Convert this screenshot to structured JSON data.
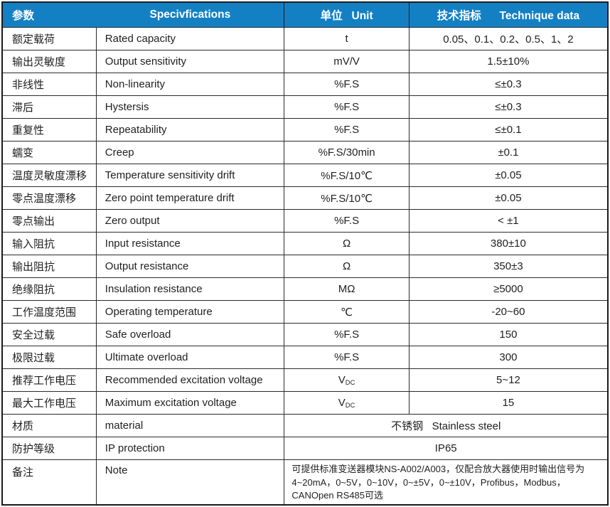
{
  "table": {
    "header": {
      "param": "参数",
      "spec": "Specivfications",
      "unit": "单位   Unit",
      "data": "技术指标      Technique data"
    },
    "rows": [
      {
        "param": "额定载荷",
        "spec": "Rated capacity",
        "unit": "t",
        "value": "0.05、0.1、0.2、0.5、1、2"
      },
      {
        "param": "输出灵敏度",
        "spec": "Output sensitivity",
        "unit": "mV/V",
        "value": "1.5±10%"
      },
      {
        "param": "非线性",
        "spec": "Non-linearity",
        "unit": "%F.S",
        "value": "≤±0.3"
      },
      {
        "param": "滞后",
        "spec": "Hystersis",
        "unit": "%F.S",
        "value": "≤±0.3"
      },
      {
        "param": "重复性",
        "spec": "Repeatability",
        "unit": "%F.S",
        "value": "≤±0.1"
      },
      {
        "param": "蠕变",
        "spec": "Creep",
        "unit": "%F.S/30min",
        "value": "±0.1"
      },
      {
        "param": "温度灵敏度漂移",
        "spec": "Temperature sensitivity drift",
        "unit": "%F.S/10℃",
        "value": "±0.05"
      },
      {
        "param": "零点温度漂移",
        "spec": "Zero point temperature drift",
        "unit": "%F.S/10℃",
        "value": "±0.05"
      },
      {
        "param": "零点输出",
        "spec": "Zero output",
        "unit": "%F.S",
        "value": "< ±1"
      },
      {
        "param": "输入阻抗",
        "spec": "Input resistance",
        "unit": "Ω",
        "value": "380±10"
      },
      {
        "param": "输出阻抗",
        "spec": "Output resistance",
        "unit": "Ω",
        "value": "350±3"
      },
      {
        "param": "绝缘阻抗",
        "spec": "Insulation resistance",
        "unit": "MΩ",
        "value": "≥5000"
      },
      {
        "param": "工作温度范围",
        "spec": "Operating temperature",
        "unit": "℃",
        "value": "-20~60"
      },
      {
        "param": "安全过载",
        "spec": "Safe overload",
        "unit": "%F.S",
        "value": "150"
      },
      {
        "param": "极限过载",
        "spec": "Ultimate overload",
        "unit": "%F.S",
        "value": "300"
      },
      {
        "param": "推荐工作电压",
        "spec": "Recommended excitation voltage",
        "unit": "V",
        "unit_sub": "DC",
        "value": "5~12"
      },
      {
        "param": "最大工作电压",
        "spec": "Maximum excitation voltage",
        "unit": "V",
        "unit_sub": "DC",
        "value": "15"
      },
      {
        "param": "材质",
        "spec": "material",
        "span_value": "不锈钢   Stainless steel"
      },
      {
        "param": "防护等级",
        "spec": "IP protection",
        "span_value": "IP65"
      },
      {
        "param": "备注",
        "spec": "Note",
        "span_lines": [
          "可提供标准变送器模块NS-A002/A003，仅配合放大器使用时输出信号为",
          "4~20mA，0~5V，0~10V，0~±5V，0~±10V，Profibus，Modbus，",
          "CANOpen  RS485可选"
        ]
      }
    ]
  },
  "colors": {
    "header_bg": "#1480c4",
    "header_text": "#ffffff",
    "border": "#1a1a1a",
    "body_text": "#1f1f1f"
  }
}
